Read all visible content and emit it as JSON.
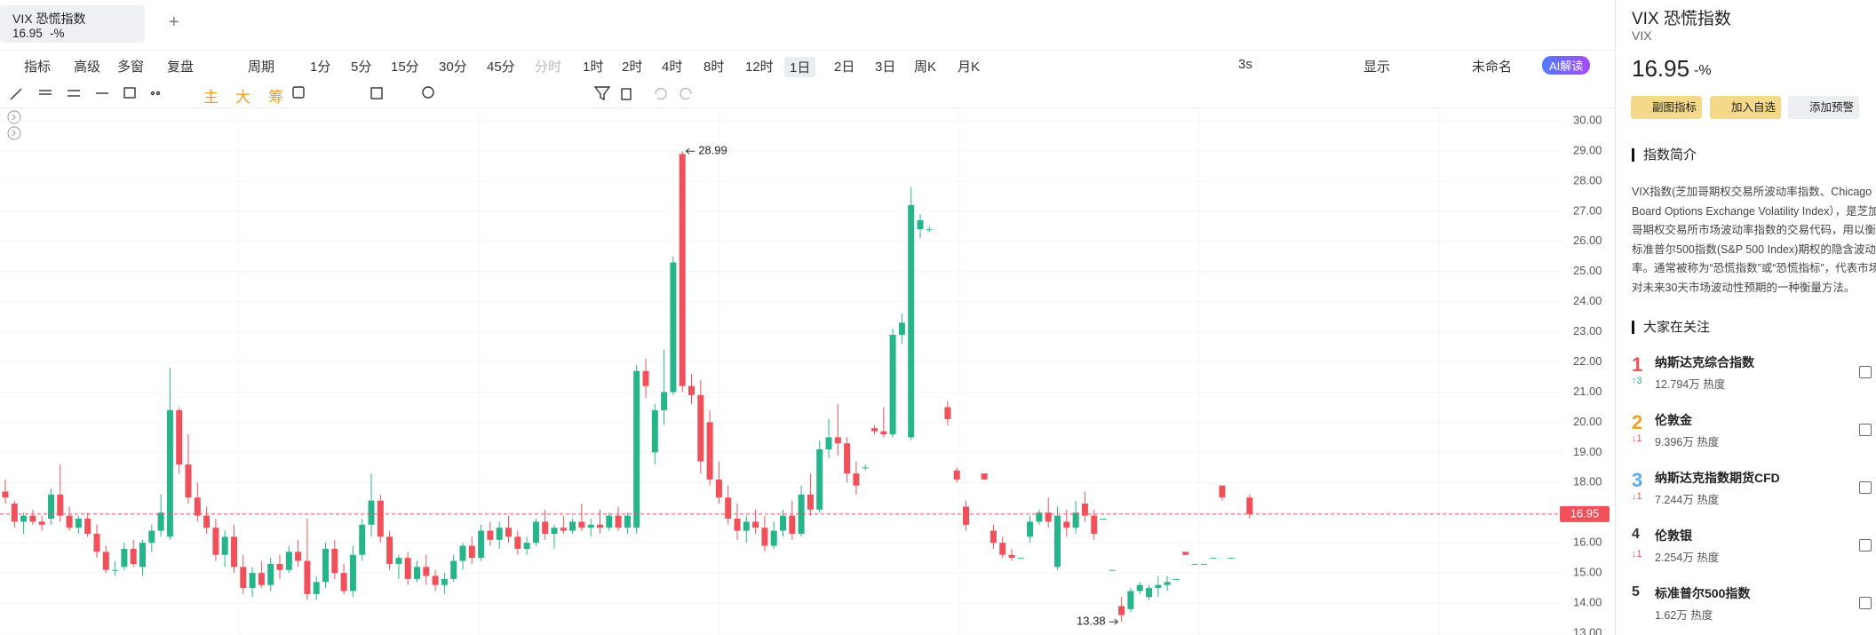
{
  "tab": {
    "title": "VIX 恐慌指数",
    "price": "16.95",
    "change": "-%"
  },
  "toolbar": {
    "left": [
      "指标",
      "高级",
      "多窗",
      "复盘",
      "周期",
      "1分",
      "5分",
      "15分",
      "30分",
      "45分",
      "分时",
      "1时",
      "2时",
      "4时",
      "8时",
      "12时",
      "1日",
      "2日",
      "3日",
      "周K",
      "月K"
    ],
    "right": [
      "3s",
      "显示",
      "未命名",
      "AI解读"
    ]
  },
  "drawing_toolbar": [
    "主",
    "大",
    "筹"
  ],
  "chart_data": {
    "type": "candlestick",
    "up_color": "#26b58a",
    "down_color": "#f0505a",
    "grid": true,
    "ylim": [
      13,
      30
    ],
    "yticks": [
      {
        "value": 13,
        "label": "13.00"
      },
      {
        "value": 14,
        "label": "14.00"
      },
      {
        "value": 15,
        "label": "15.00"
      },
      {
        "value": 16,
        "label": "16.00"
      },
      {
        "value": 17,
        "label": "17.00"
      },
      {
        "value": 18,
        "label": "18.00"
      },
      {
        "value": 19,
        "label": "19.00"
      },
      {
        "value": 20,
        "label": "20.00"
      },
      {
        "value": 21,
        "label": "21.00"
      },
      {
        "value": 22,
        "label": "22.00"
      },
      {
        "value": 23,
        "label": "23.00"
      },
      {
        "value": 24,
        "label": "24.00"
      },
      {
        "value": 25,
        "label": "25.00"
      },
      {
        "value": 26,
        "label": "26.00"
      },
      {
        "value": 27,
        "label": "27.00"
      },
      {
        "value": 28,
        "label": "28.00"
      },
      {
        "value": 29,
        "label": "29.00"
      },
      {
        "value": 30,
        "label": "30.00"
      }
    ],
    "last_price": 16.95,
    "ohlc": [
      [
        17.7,
        18.1,
        17.3,
        17.5
      ],
      [
        17.3,
        17.4,
        16.5,
        16.7
      ],
      [
        16.7,
        17.0,
        16.3,
        16.9
      ],
      [
        16.9,
        17.1,
        16.6,
        16.7
      ],
      [
        16.7,
        16.9,
        16.4,
        16.6
      ],
      [
        16.8,
        17.8,
        16.6,
        17.6
      ],
      [
        17.6,
        18.6,
        16.7,
        16.9
      ],
      [
        16.9,
        17.2,
        16.4,
        16.5
      ],
      [
        16.5,
        16.9,
        16.3,
        16.8
      ],
      [
        16.8,
        17.0,
        16.2,
        16.3
      ],
      [
        16.3,
        16.6,
        15.5,
        15.7
      ],
      [
        15.7,
        15.9,
        15.0,
        15.1
      ],
      [
        15.1,
        15.4,
        14.9,
        15.1
      ],
      [
        15.2,
        16.0,
        15.1,
        15.8
      ],
      [
        15.8,
        16.1,
        15.2,
        15.3
      ],
      [
        15.2,
        16.1,
        14.9,
        16.0
      ],
      [
        16.0,
        16.6,
        15.7,
        16.4
      ],
      [
        16.4,
        17.6,
        16.2,
        17.0
      ],
      [
        16.2,
        21.8,
        16.1,
        20.4
      ],
      [
        20.4,
        20.5,
        18.3,
        18.6
      ],
      [
        18.6,
        19.6,
        17.3,
        17.5
      ],
      [
        17.5,
        18.0,
        16.7,
        16.9
      ],
      [
        16.9,
        17.2,
        16.3,
        16.5
      ],
      [
        16.5,
        16.8,
        15.4,
        15.6
      ],
      [
        15.6,
        16.4,
        15.2,
        16.2
      ],
      [
        16.2,
        16.6,
        15.0,
        15.2
      ],
      [
        15.2,
        15.6,
        14.3,
        14.5
      ],
      [
        14.5,
        15.2,
        14.2,
        15.0
      ],
      [
        15.0,
        15.4,
        14.5,
        14.6
      ],
      [
        14.6,
        15.5,
        14.4,
        15.3
      ],
      [
        15.3,
        15.6,
        14.8,
        15.1
      ],
      [
        15.1,
        15.9,
        15.0,
        15.7
      ],
      [
        15.7,
        16.1,
        15.2,
        15.4
      ],
      [
        15.4,
        16.8,
        14.1,
        14.3
      ],
      [
        14.3,
        14.9,
        14.1,
        14.7
      ],
      [
        14.7,
        16.0,
        14.5,
        15.8
      ],
      [
        15.8,
        16.1,
        14.8,
        15.0
      ],
      [
        15.0,
        15.3,
        14.3,
        14.4
      ],
      [
        14.4,
        15.9,
        14.2,
        15.6
      ],
      [
        15.6,
        16.8,
        15.4,
        16.6
      ],
      [
        16.6,
        18.3,
        16.2,
        17.4
      ],
      [
        17.4,
        17.6,
        16.0,
        16.2
      ],
      [
        16.2,
        16.4,
        15.1,
        15.3
      ],
      [
        15.3,
        15.6,
        14.8,
        15.5
      ],
      [
        15.5,
        15.7,
        14.6,
        14.8
      ],
      [
        14.8,
        15.4,
        14.7,
        15.2
      ],
      [
        15.2,
        15.6,
        14.6,
        14.9
      ],
      [
        14.9,
        15.1,
        14.4,
        14.6
      ],
      [
        14.6,
        15.0,
        14.3,
        14.8
      ],
      [
        14.8,
        15.6,
        14.7,
        15.4
      ],
      [
        15.4,
        16.0,
        15.1,
        15.9
      ],
      [
        15.9,
        16.2,
        15.3,
        15.5
      ],
      [
        15.5,
        16.6,
        15.4,
        16.4
      ],
      [
        16.4,
        16.7,
        15.9,
        16.1
      ],
      [
        16.1,
        16.7,
        15.8,
        16.5
      ],
      [
        16.5,
        16.9,
        16.0,
        16.2
      ],
      [
        16.2,
        16.4,
        15.6,
        15.8
      ],
      [
        15.8,
        16.2,
        15.6,
        16.0
      ],
      [
        16.0,
        16.8,
        15.9,
        16.7
      ],
      [
        16.7,
        17.1,
        16.1,
        16.3
      ],
      [
        16.3,
        16.6,
        15.8,
        16.5
      ],
      [
        16.5,
        16.9,
        16.3,
        16.4
      ],
      [
        16.4,
        16.8,
        16.3,
        16.7
      ],
      [
        16.7,
        17.3,
        16.4,
        16.5
      ],
      [
        16.5,
        16.8,
        16.2,
        16.6
      ],
      [
        16.6,
        17.1,
        16.3,
        16.5
      ],
      [
        16.5,
        17.0,
        16.4,
        16.9
      ],
      [
        16.9,
        17.2,
        16.4,
        16.5
      ],
      [
        16.5,
        17.0,
        16.3,
        16.9
      ],
      [
        16.5,
        21.9,
        16.3,
        21.7
      ],
      [
        21.7,
        22.1,
        20.8,
        21.2
      ],
      [
        19.0,
        20.6,
        18.6,
        20.4
      ],
      [
        20.4,
        22.4,
        19.9,
        21.0
      ],
      [
        21.0,
        25.5,
        20.9,
        25.3
      ],
      [
        28.9,
        28.99,
        21.0,
        21.2
      ],
      [
        21.2,
        21.6,
        20.6,
        20.9
      ],
      [
        20.9,
        21.4,
        18.3,
        18.7
      ],
      [
        20.0,
        20.4,
        17.9,
        18.1
      ],
      [
        18.1,
        18.7,
        17.3,
        17.5
      ],
      [
        17.5,
        17.9,
        16.6,
        16.8
      ],
      [
        16.8,
        17.3,
        16.1,
        16.4
      ],
      [
        16.4,
        16.9,
        16.0,
        16.7
      ],
      [
        16.7,
        17.1,
        16.3,
        16.5
      ],
      [
        16.5,
        16.9,
        15.7,
        15.9
      ],
      [
        15.9,
        16.7,
        15.8,
        16.4
      ],
      [
        16.4,
        17.1,
        16.2,
        16.9
      ],
      [
        16.9,
        17.4,
        16.1,
        16.3
      ],
      [
        16.3,
        17.9,
        16.2,
        17.6
      ],
      [
        17.6,
        18.3,
        16.9,
        17.1
      ],
      [
        17.1,
        19.4,
        17.0,
        19.1
      ],
      [
        19.1,
        20.1,
        18.8,
        19.5
      ],
      [
        19.5,
        20.6,
        18.9,
        19.3
      ],
      [
        19.3,
        19.5,
        18.0,
        18.3
      ],
      [
        18.3,
        18.7,
        17.6,
        17.9
      ],
      [
        18.5,
        18.6,
        18.4,
        18.5
      ],
      [
        19.8,
        19.9,
        19.6,
        19.7
      ],
      [
        19.7,
        20.5,
        19.5,
        19.6
      ],
      [
        19.6,
        23.1,
        19.5,
        22.9
      ],
      [
        22.9,
        23.6,
        22.6,
        23.3
      ],
      [
        19.5,
        27.8,
        19.4,
        27.2
      ],
      [
        26.4,
        26.9,
        26.1,
        26.7
      ],
      [
        26.4,
        26.5,
        26.3,
        26.4
      ],
      null,
      [
        20.5,
        20.7,
        19.9,
        20.1
      ],
      [
        18.4,
        18.5,
        18.0,
        18.1
      ],
      [
        17.2,
        17.4,
        16.4,
        16.6
      ],
      null,
      [
        18.3,
        18.3,
        18.1,
        18.1
      ],
      [
        16.4,
        16.6,
        15.8,
        16.0
      ],
      [
        16.0,
        16.2,
        15.5,
        15.6
      ],
      [
        15.6,
        15.8,
        15.4,
        15.5
      ],
      [
        15.5,
        15.5,
        15.5,
        15.5
      ],
      [
        16.2,
        16.9,
        16.0,
        16.7
      ],
      [
        16.7,
        17.1,
        16.6,
        17.0
      ],
      [
        17.0,
        17.5,
        16.5,
        16.7
      ],
      [
        15.2,
        17.2,
        15.1,
        16.9
      ],
      [
        16.7,
        17.1,
        16.2,
        16.5
      ],
      [
        16.5,
        17.4,
        16.3,
        17.0
      ],
      [
        17.3,
        17.7,
        16.7,
        16.9
      ],
      [
        16.9,
        17.1,
        16.1,
        16.3
      ],
      [
        16.8,
        16.8,
        16.8,
        16.8
      ],
      [
        15.1,
        15.1,
        15.1,
        15.1
      ],
      [
        13.9,
        14.2,
        13.38,
        13.6
      ],
      [
        13.8,
        14.5,
        13.7,
        14.4
      ],
      [
        14.4,
        14.7,
        14.3,
        14.6
      ],
      [
        14.2,
        14.6,
        14.1,
        14.5
      ],
      [
        14.5,
        14.9,
        14.2,
        14.6
      ],
      [
        14.6,
        14.9,
        14.4,
        14.7
      ],
      [
        14.8,
        14.8,
        14.8,
        14.8
      ],
      [
        15.7,
        15.7,
        15.6,
        15.6
      ],
      [
        15.3,
        15.3,
        15.3,
        15.3
      ],
      [
        15.3,
        15.3,
        15.3,
        15.3
      ],
      [
        15.5,
        15.5,
        15.5,
        15.5
      ],
      [
        17.9,
        17.9,
        17.4,
        17.5
      ],
      [
        15.5,
        15.5,
        15.5,
        15.5
      ],
      null,
      [
        17.5,
        17.6,
        16.8,
        16.95
      ]
    ]
  },
  "quote": {
    "name": "VIX 恐慌指数",
    "code": "VIX",
    "price": "16.95",
    "change": "-%",
    "buttons": [
      "副图指标",
      "加入自选",
      "添加预警"
    ]
  },
  "intro": {
    "title": "指数简介",
    "text": "VIX指数(芝加哥期权交易所波动率指数、Chicago Board Options Exchange Volatility Index），是芝加哥期权交易所市场波动率指数的交易代码，用以衡量标准普尔500指数(S&P 500 Index)期权的隐含波动率。通常被称为“恐慌指数”或“恐慌指标”，代表市场对未来30天市场波动性预期的一种衡量方法。"
  },
  "watch": {
    "title": "大家在关注",
    "items": [
      {
        "rank": 1,
        "name": "纳斯达克综合指数",
        "heat": "12.794万 热度",
        "change": "↑3"
      },
      {
        "rank": 2,
        "name": "伦敦金",
        "heat": "9.396万 热度",
        "change": "↓1"
      },
      {
        "rank": 3,
        "name": "纳斯达克指数期货CFD",
        "heat": "7.244万 热度",
        "change": "↓1"
      },
      {
        "rank": 4,
        "name": "伦敦银",
        "heat": "2.254万 热度",
        "change": "↓1"
      },
      {
        "rank": 5,
        "name": "标准普尔500指数",
        "heat": "1.62万 热度",
        "change": null
      }
    ]
  }
}
